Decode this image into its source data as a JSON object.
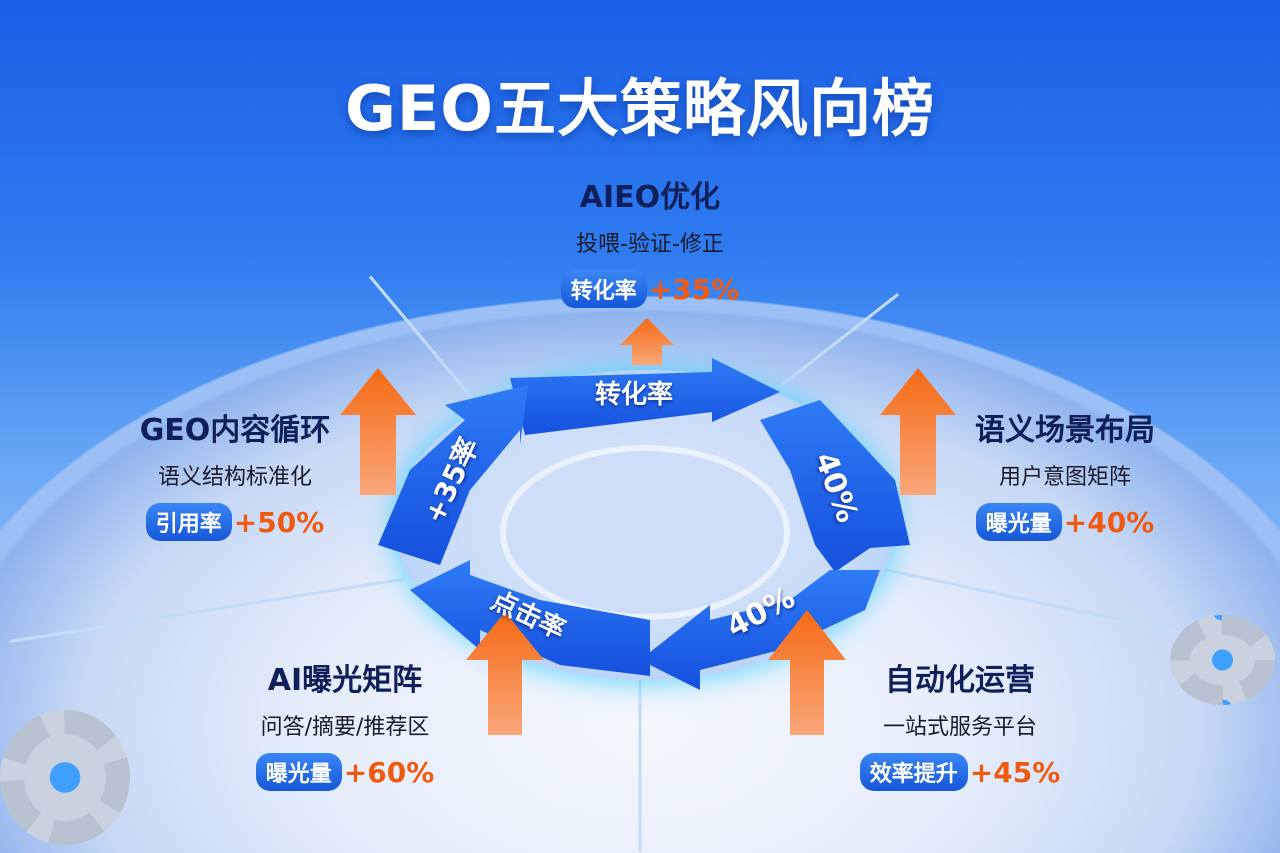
{
  "title": "GEO五大策略风向榜",
  "strategies": [
    {
      "heading": "AIEO优化",
      "subtitle": "投喂-验证-修正",
      "metric_label": "转化率",
      "metric_value": "+35%"
    },
    {
      "heading": "GEO内容循环",
      "subtitle": "语义结构标准化",
      "metric_label": "引用率",
      "metric_value": "+50%"
    },
    {
      "heading": "语义场景布局",
      "subtitle": "用户意图矩阵",
      "metric_label": "曝光量",
      "metric_value": "+40%"
    },
    {
      "heading": "AI曝光矩阵",
      "subtitle": "问答/摘要/推荐区",
      "metric_label": "曝光量",
      "metric_value": "+60%"
    },
    {
      "heading": "自动化运营",
      "subtitle": "一站式服务平台",
      "metric_label": "效率提升",
      "metric_value": "+45%"
    }
  ],
  "cycle": {
    "top": "转化率",
    "right": "40%",
    "bottom_right": "40%",
    "bottom_left": "点击率",
    "left": "+35率"
  },
  "colors": {
    "arrow_blue": "#1f63ea",
    "up_arrow_orange": "#f46a14",
    "metric_orange": "#f05a10",
    "heading": "#0f1f5a"
  }
}
